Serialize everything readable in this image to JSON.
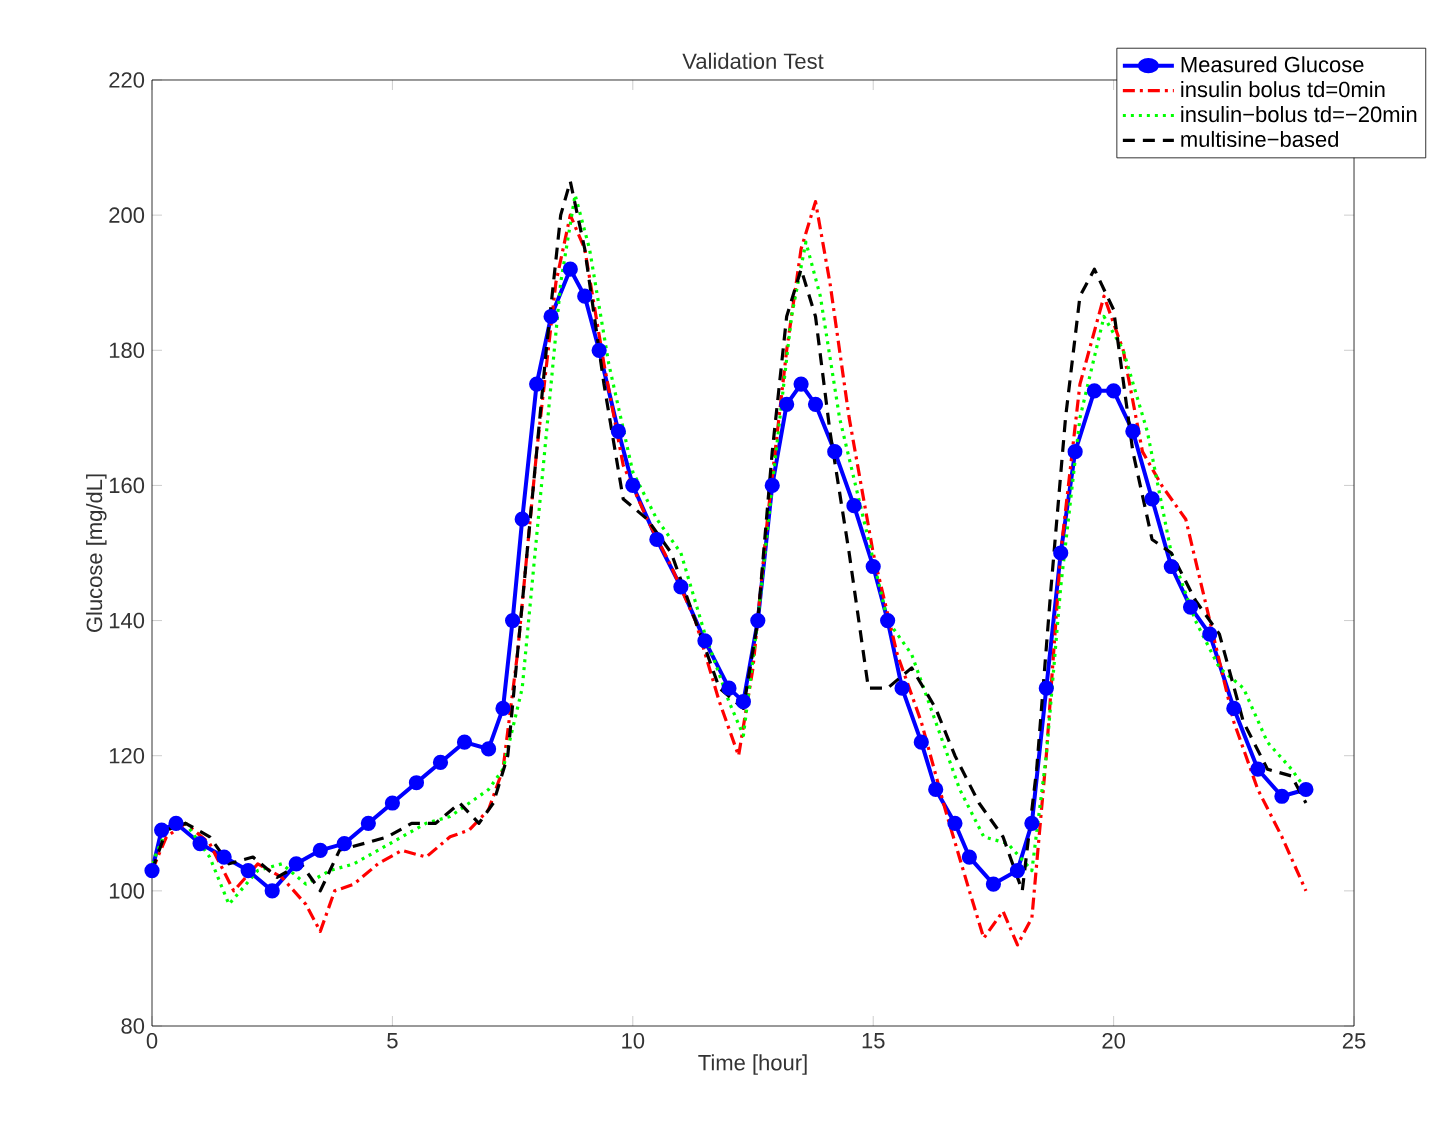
{
  "chart_data": {
    "type": "line",
    "title": "Validation Test",
    "xlabel": "Time [hour]",
    "ylabel": "Glucose [mg/dL]",
    "xlim": [
      0,
      25
    ],
    "ylim": [
      80,
      220
    ],
    "xticks": [
      0,
      5,
      10,
      15,
      20,
      25
    ],
    "yticks": [
      80,
      100,
      120,
      140,
      160,
      180,
      200,
      220
    ],
    "legend": "top right",
    "series": [
      {
        "name": "Measured Glucose",
        "color": "#0000ff",
        "marker": "circle",
        "line_style": "solid",
        "x": [
          0,
          0.2,
          0.5,
          1,
          1.5,
          2,
          2.5,
          3,
          3.5,
          4,
          4.5,
          5,
          5.5,
          6,
          6.5,
          7,
          7.3,
          7.5,
          7.7,
          8,
          8.3,
          8.7,
          9,
          9.3,
          9.7,
          10,
          10.5,
          11,
          11.5,
          12,
          12.3,
          12.6,
          12.9,
          13.2,
          13.5,
          13.8,
          14.2,
          14.6,
          15,
          15.3,
          15.6,
          16,
          16.3,
          16.7,
          17,
          17.5,
          18,
          18.3,
          18.6,
          18.9,
          19.2,
          19.6,
          20,
          20.4,
          20.8,
          21.2,
          21.6,
          22,
          22.5,
          23,
          23.5,
          24
        ],
        "values": [
          103,
          109,
          110,
          107,
          105,
          103,
          100,
          104,
          106,
          107,
          110,
          113,
          116,
          119,
          122,
          121,
          127,
          140,
          155,
          175,
          185,
          192,
          188,
          180,
          168,
          160,
          152,
          145,
          137,
          130,
          128,
          140,
          160,
          172,
          175,
          172,
          165,
          157,
          148,
          140,
          130,
          122,
          115,
          110,
          105,
          101,
          103,
          110,
          130,
          150,
          165,
          174,
          174,
          168,
          158,
          148,
          142,
          138,
          127,
          118,
          114,
          115
        ]
      },
      {
        "name": "insulin bolus td=0min",
        "color": "#ff0000",
        "marker": "none",
        "line_style": "dashdot",
        "x": [
          0,
          0.3,
          0.7,
          1.2,
          1.7,
          2.2,
          2.7,
          3.2,
          3.5,
          3.8,
          4.2,
          4.7,
          5.2,
          5.7,
          6.2,
          6.6,
          7,
          7.3,
          7.6,
          8,
          8.4,
          8.7,
          9,
          9.4,
          9.8,
          10.3,
          10.8,
          11.3,
          11.8,
          12.2,
          12.5,
          12.8,
          13.2,
          13.5,
          13.8,
          14.1,
          14.5,
          15,
          15.5,
          16,
          16.5,
          17,
          17.3,
          17.7,
          18,
          18.3,
          18.6,
          18.9,
          19.3,
          19.8,
          20.2,
          20.6,
          21,
          21.5,
          22,
          22.5,
          23,
          23.5,
          24
        ],
        "values": [
          103,
          108,
          110,
          107,
          100,
          104,
          102,
          98,
          94,
          100,
          101,
          104,
          106,
          105,
          108,
          109,
          112,
          118,
          135,
          165,
          190,
          200,
          195,
          178,
          163,
          155,
          148,
          140,
          128,
          120,
          133,
          155,
          180,
          195,
          202,
          190,
          170,
          150,
          135,
          125,
          112,
          100,
          93,
          97,
          92,
          96,
          120,
          150,
          175,
          188,
          180,
          165,
          160,
          155,
          140,
          125,
          115,
          108,
          100
        ]
      },
      {
        "name": "insulin−bolus td=−20min",
        "color": "#00ff00",
        "marker": "none",
        "line_style": "dotted",
        "x": [
          0,
          0.3,
          0.7,
          1.2,
          1.6,
          2.2,
          2.7,
          3.2,
          3.7,
          4.2,
          4.7,
          5.2,
          5.7,
          6.2,
          6.6,
          7,
          7.3,
          7.7,
          8.1,
          8.5,
          8.8,
          9.1,
          9.5,
          10,
          10.5,
          11,
          11.5,
          12,
          12.3,
          12.6,
          12.9,
          13.3,
          13.6,
          13.9,
          14.3,
          14.8,
          15.3,
          15.8,
          16.3,
          16.8,
          17.3,
          17.8,
          18.3,
          18.6,
          18.9,
          19.3,
          19.8,
          20.2,
          20.7,
          21.2,
          21.7,
          22.2,
          22.7,
          23.2,
          23.7,
          24
        ],
        "values": [
          104,
          109,
          110,
          105,
          98,
          103,
          104,
          101,
          103,
          104,
          106,
          108,
          110,
          111,
          113,
          115,
          118,
          130,
          160,
          190,
          203,
          195,
          178,
          162,
          155,
          150,
          138,
          128,
          123,
          140,
          160,
          185,
          196,
          188,
          170,
          155,
          140,
          135,
          125,
          115,
          108,
          107,
          103,
          120,
          145,
          170,
          185,
          180,
          168,
          150,
          140,
          133,
          130,
          122,
          118,
          115
        ]
      },
      {
        "name": "multisine−based",
        "color": "#000000",
        "marker": "none",
        "line_style": "dashed",
        "x": [
          0,
          0.3,
          0.7,
          1.2,
          1.6,
          2.1,
          2.6,
          3.1,
          3.5,
          3.9,
          4.4,
          4.9,
          5.4,
          5.9,
          6.4,
          6.8,
          7.1,
          7.4,
          7.8,
          8.2,
          8.5,
          8.7,
          9,
          9.4,
          9.8,
          10.3,
          10.8,
          11.3,
          11.8,
          12.3,
          12.6,
          12.9,
          13.2,
          13.5,
          13.8,
          14.1,
          14.5,
          14.9,
          15.3,
          15.8,
          16.3,
          16.7,
          17.2,
          17.7,
          18.1,
          18.4,
          18.7,
          19,
          19.3,
          19.6,
          20,
          20.4,
          20.8,
          21.2,
          21.7,
          22.2,
          22.7,
          23.2,
          23.7,
          24
        ],
        "values": [
          103,
          109,
          110,
          108,
          104,
          105,
          102,
          104,
          100,
          106,
          107,
          108,
          110,
          110,
          113,
          110,
          113,
          120,
          150,
          180,
          200,
          205,
          195,
          175,
          158,
          155,
          150,
          140,
          130,
          127,
          140,
          165,
          185,
          192,
          185,
          168,
          150,
          130,
          130,
          133,
          127,
          120,
          113,
          108,
          100,
          118,
          145,
          170,
          188,
          192,
          186,
          165,
          152,
          150,
          143,
          138,
          125,
          118,
          117,
          113
        ]
      }
    ]
  }
}
